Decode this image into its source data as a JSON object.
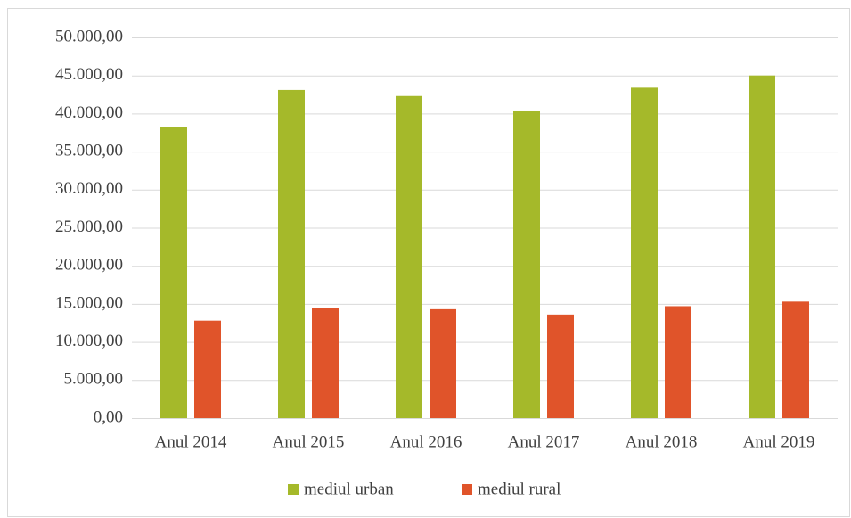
{
  "chart_data": {
    "type": "bar",
    "categories": [
      "Anul 2014",
      "Anul 2015",
      "Anul 2016",
      "Anul 2017",
      "Anul 2018",
      "Anul 2019"
    ],
    "series": [
      {
        "name": "mediul urban",
        "color": "#a5b92a",
        "values": [
          38200,
          43100,
          42300,
          40400,
          43400,
          45000
        ]
      },
      {
        "name": "mediul rural",
        "color": "#e0542a",
        "values": [
          12800,
          14500,
          14300,
          13600,
          14700,
          15300
        ]
      }
    ],
    "ylim": [
      0,
      50000
    ],
    "yticks": [
      {
        "value": 0,
        "label": "0,00"
      },
      {
        "value": 5000,
        "label": "5.000,00"
      },
      {
        "value": 10000,
        "label": "10.000,00"
      },
      {
        "value": 15000,
        "label": "15.000,00"
      },
      {
        "value": 20000,
        "label": "20.000,00"
      },
      {
        "value": 25000,
        "label": "25.000,00"
      },
      {
        "value": 30000,
        "label": "30.000,00"
      },
      {
        "value": 35000,
        "label": "35.000,00"
      },
      {
        "value": 40000,
        "label": "40.000,00"
      },
      {
        "value": 45000,
        "label": "45.000,00"
      },
      {
        "value": 50000,
        "label": "50.000,00"
      }
    ],
    "grid": true,
    "legend": "bottom"
  }
}
